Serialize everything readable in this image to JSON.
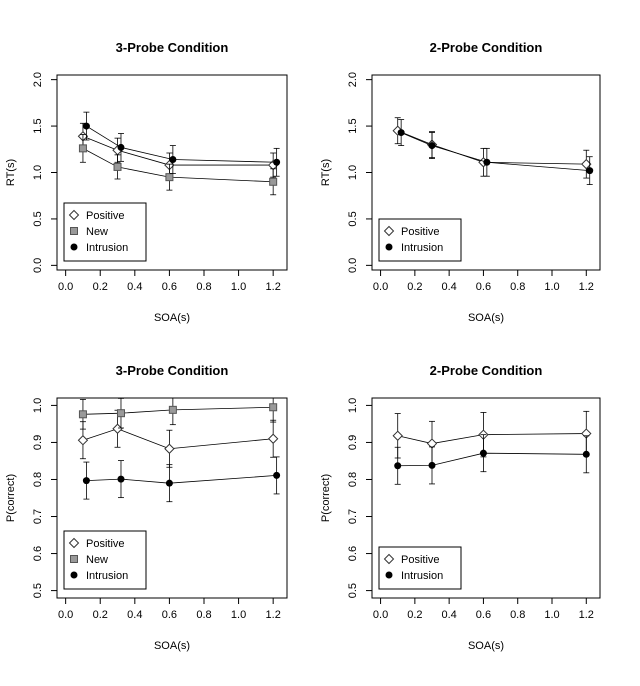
{
  "chart_data": [
    {
      "type": "line",
      "title": "3-Probe Condition",
      "xlabel": "SOA(s)",
      "ylabel": "RT(s)",
      "xlim": [
        -0.05,
        1.28
      ],
      "ylim": [
        -0.05,
        2.05
      ],
      "xticks": [
        "0.0",
        "0.2",
        "0.4",
        "0.6",
        "0.8",
        "1.0",
        "1.2"
      ],
      "yticks": [
        "0.0",
        "0.5",
        "1.0",
        "1.5",
        "2.0"
      ],
      "legend": "bottom-left",
      "series": [
        {
          "name": "Positive",
          "marker": "diamond",
          "color": "#ffffff",
          "x": [
            0.1,
            0.3,
            0.6,
            1.2
          ],
          "y": [
            1.39,
            1.24,
            1.08,
            1.08
          ],
          "err": [
            0.14,
            0.13,
            0.13,
            0.13
          ]
        },
        {
          "name": "New",
          "marker": "square",
          "color": "#999999",
          "x": [
            0.1,
            0.3,
            0.6,
            1.2
          ],
          "y": [
            1.26,
            1.06,
            0.95,
            0.9
          ],
          "err": [
            0.15,
            0.13,
            0.14,
            0.14
          ]
        },
        {
          "name": "Intrusion",
          "marker": "circle",
          "color": "#000000",
          "x": [
            0.12,
            0.32,
            0.62,
            1.22
          ],
          "y": [
            1.5,
            1.27,
            1.14,
            1.11
          ],
          "err": [
            0.15,
            0.15,
            0.15,
            0.15
          ]
        }
      ]
    },
    {
      "type": "line",
      "title": "2-Probe Condition",
      "xlabel": "SOA(s)",
      "ylabel": "RT(s)",
      "xlim": [
        -0.05,
        1.28
      ],
      "ylim": [
        -0.05,
        2.05
      ],
      "xticks": [
        "0.0",
        "0.2",
        "0.4",
        "0.6",
        "0.8",
        "1.0",
        "1.2"
      ],
      "yticks": [
        "0.0",
        "0.5",
        "1.0",
        "1.5",
        "2.0"
      ],
      "legend": "bottom-left",
      "series": [
        {
          "name": "Positive",
          "marker": "diamond",
          "color": "#ffffff",
          "x": [
            0.1,
            0.3,
            0.6,
            1.2
          ],
          "y": [
            1.45,
            1.3,
            1.11,
            1.09
          ],
          "err": [
            0.14,
            0.14,
            0.15,
            0.15
          ]
        },
        {
          "name": "Intrusion",
          "marker": "circle",
          "color": "#000000",
          "x": [
            0.12,
            0.3,
            0.62,
            1.22
          ],
          "y": [
            1.43,
            1.29,
            1.11,
            1.02
          ],
          "err": [
            0.14,
            0.14,
            0.15,
            0.15
          ]
        }
      ]
    },
    {
      "type": "line",
      "title": "3-Probe Condition",
      "xlabel": "SOA(s)",
      "ylabel": "P(correct)",
      "xlim": [
        -0.05,
        1.28
      ],
      "ylim": [
        0.48,
        1.02
      ],
      "xticks": [
        "0.0",
        "0.2",
        "0.4",
        "0.6",
        "0.8",
        "1.0",
        "1.2"
      ],
      "yticks": [
        "0.5",
        "0.6",
        "0.7",
        "0.8",
        "0.9",
        "1.0"
      ],
      "legend": "bottom-left",
      "series": [
        {
          "name": "Positive",
          "marker": "diamond",
          "color": "#ffffff",
          "x": [
            0.1,
            0.3,
            0.6,
            1.2
          ],
          "y": [
            0.906,
            0.937,
            0.883,
            0.91
          ],
          "err": [
            0.05,
            0.05,
            0.05,
            0.05
          ]
        },
        {
          "name": "New",
          "marker": "square",
          "color": "#999999",
          "x": [
            0.1,
            0.32,
            0.62,
            1.2
          ],
          "y": [
            0.976,
            0.979,
            0.988,
            0.995
          ],
          "err": [
            0.04,
            0.04,
            0.04,
            0.04
          ]
        },
        {
          "name": "Intrusion",
          "marker": "circle",
          "color": "#000000",
          "x": [
            0.12,
            0.32,
            0.6,
            1.22
          ],
          "y": [
            0.797,
            0.801,
            0.79,
            0.811
          ],
          "err": [
            0.05,
            0.05,
            0.05,
            0.05
          ]
        }
      ]
    },
    {
      "type": "line",
      "title": "2-Probe Condition",
      "xlabel": "SOA(s)",
      "ylabel": "P(correct)",
      "xlim": [
        -0.05,
        1.28
      ],
      "ylim": [
        0.48,
        1.02
      ],
      "xticks": [
        "0.0",
        "0.2",
        "0.4",
        "0.6",
        "0.8",
        "1.0",
        "1.2"
      ],
      "yticks": [
        "0.5",
        "0.6",
        "0.7",
        "0.8",
        "0.9",
        "1.0"
      ],
      "legend": "bottom-left",
      "series": [
        {
          "name": "Positive",
          "marker": "diamond",
          "color": "#ffffff",
          "x": [
            0.1,
            0.3,
            0.6,
            1.2
          ],
          "y": [
            0.918,
            0.897,
            0.921,
            0.924
          ],
          "err": [
            0.06,
            0.06,
            0.06,
            0.06
          ]
        },
        {
          "name": "Intrusion",
          "marker": "circle",
          "color": "#000000",
          "x": [
            0.1,
            0.3,
            0.6,
            1.2
          ],
          "y": [
            0.837,
            0.838,
            0.871,
            0.868
          ],
          "err": [
            0.05,
            0.05,
            0.05,
            0.05
          ]
        }
      ]
    }
  ]
}
